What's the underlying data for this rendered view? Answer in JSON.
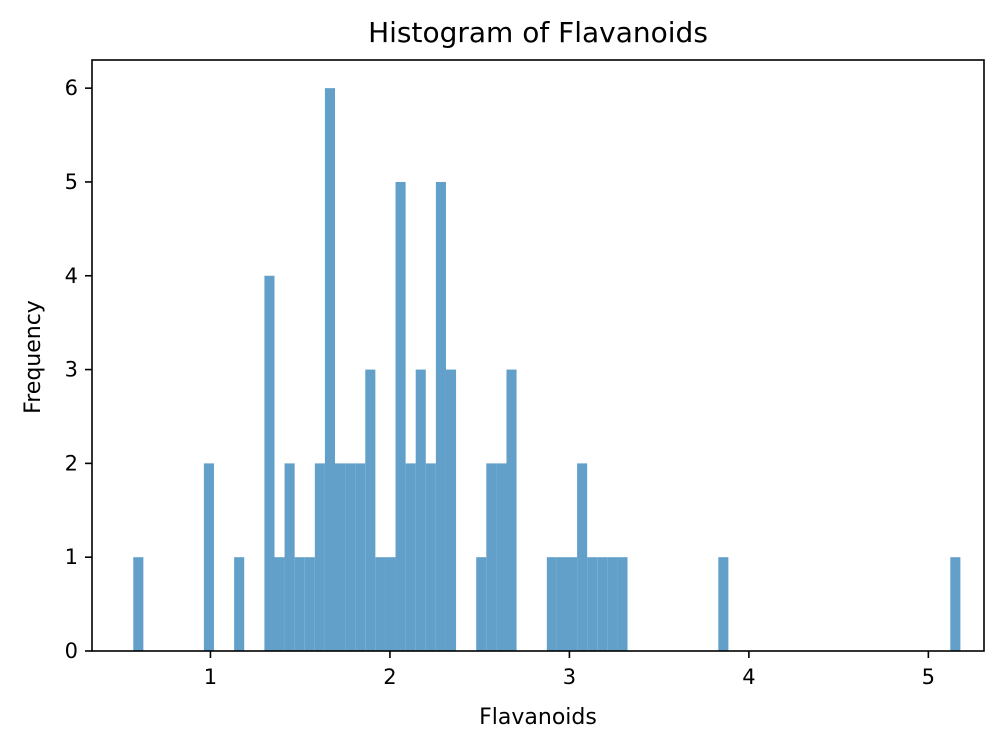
{
  "chart_data": {
    "type": "bar",
    "title": "Histogram of Flavanoids",
    "xlabel": "Flavanoids",
    "ylabel": "Frequency",
    "xlim": [
      0.34,
      5.31
    ],
    "ylim": [
      0,
      6.3
    ],
    "xticks": [
      1,
      2,
      3,
      4,
      5
    ],
    "yticks": [
      0,
      1,
      2,
      3,
      4,
      5,
      6
    ],
    "bar_color": "#62a0ca",
    "bin_start": 0.57,
    "bin_width": 0.0562,
    "counts": [
      1,
      0,
      0,
      0,
      0,
      0,
      0,
      2,
      0,
      0,
      1,
      0,
      0,
      4,
      1,
      2,
      1,
      1,
      2,
      6,
      2,
      2,
      2,
      3,
      1,
      1,
      5,
      2,
      3,
      2,
      5,
      3,
      0,
      0,
      1,
      2,
      2,
      3,
      0,
      0,
      0,
      1,
      1,
      1,
      2,
      1,
      1,
      1,
      1,
      0,
      0,
      0,
      0,
      0,
      0,
      0,
      0,
      0,
      1,
      0,
      0,
      0,
      0,
      0,
      0,
      0,
      0,
      0,
      0,
      0,
      0,
      0,
      0,
      0,
      0,
      0,
      0,
      0,
      0,
      0,
      0,
      1
    ]
  }
}
